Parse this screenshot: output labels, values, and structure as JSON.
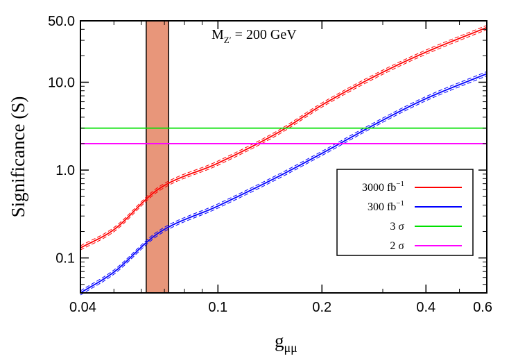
{
  "chart_data": {
    "type": "line",
    "x_scale": "log",
    "y_scale": "log",
    "xlim": [
      0.04,
      0.6
    ],
    "ylim": [
      0.04,
      50.0
    ],
    "x_ticks": [
      0.04,
      0.1,
      0.2,
      0.4,
      0.6
    ],
    "x_tick_labels": [
      "0.04",
      "0.1",
      "0.2",
      "0.4",
      "0.6"
    ],
    "y_ticks": [
      0.1,
      1.0,
      10.0,
      50.0
    ],
    "y_tick_labels": [
      "0.1",
      "1.0",
      "10.0",
      "50.0"
    ],
    "xlabel_main": "g",
    "xlabel_sub": "μμ",
    "ylabel": "Significance (S)",
    "annotation": {
      "prefix": "M",
      "sub": "Z′",
      "text": " = 200 GeV"
    },
    "band": {
      "x_range": [
        0.062,
        0.072
      ],
      "color": "#E8967A"
    },
    "series": [
      {
        "name": "3000 fb",
        "name_sup": "−1",
        "color": "#ff0000",
        "x": [
          0.04,
          0.05,
          0.067,
          0.1,
          0.15,
          0.2,
          0.3,
          0.4,
          0.6
        ],
        "y": [
          0.13,
          0.21,
          0.6,
          1.2,
          2.7,
          5.5,
          13.0,
          22.0,
          42.0
        ]
      },
      {
        "name": "300 fb",
        "name_sup": "−1",
        "color": "#0000ff",
        "x": [
          0.04,
          0.05,
          0.067,
          0.1,
          0.15,
          0.2,
          0.3,
          0.4,
          0.6
        ],
        "y": [
          0.04,
          0.069,
          0.19,
          0.39,
          0.85,
          1.55,
          3.7,
          6.5,
          12.5
        ]
      },
      {
        "name": "3 σ",
        "color": "#00e000",
        "x": [
          0.04,
          0.6
        ],
        "y": [
          3.0,
          3.0
        ]
      },
      {
        "name": "2 σ",
        "color": "#ff00ff",
        "x": [
          0.04,
          0.6
        ],
        "y": [
          2.0,
          2.0
        ]
      }
    ],
    "legend": {
      "placement": "right-middle",
      "entries": [
        {
          "label": "3000 fb",
          "sup": "−1"
        },
        {
          "label": "300 fb",
          "sup": "−1"
        },
        {
          "label": "3 σ",
          "sup": ""
        },
        {
          "label": "2 σ",
          "sup": ""
        }
      ]
    },
    "grid": false
  }
}
